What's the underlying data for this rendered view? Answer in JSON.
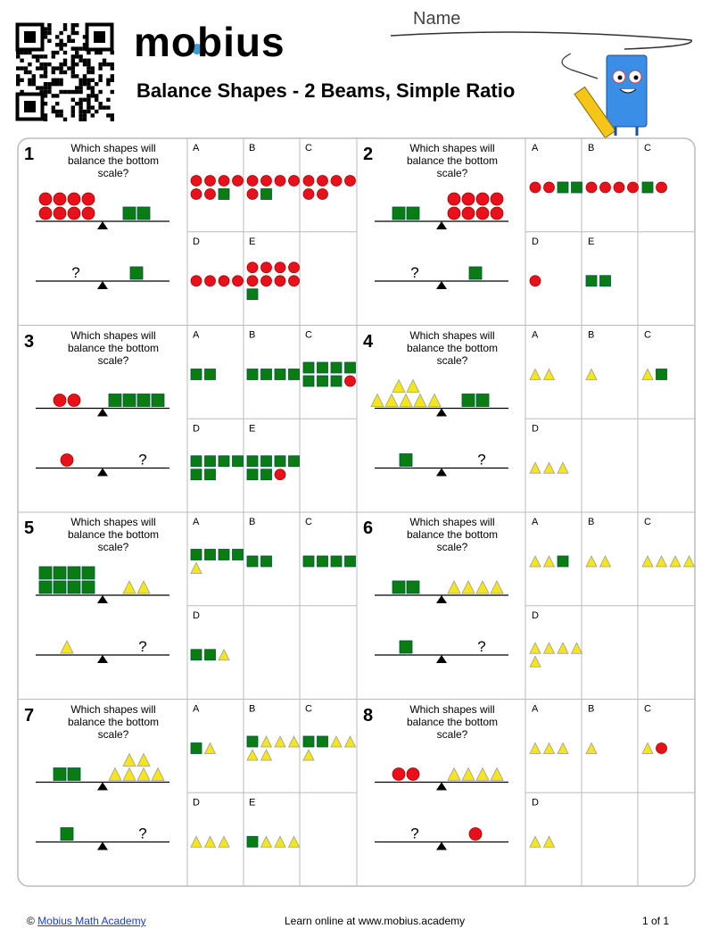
{
  "header": {
    "name_label": "Name",
    "logo": "mobius",
    "title": "Balance Shapes - 2 Beams, Simple Ratio"
  },
  "problems": [
    {
      "number": "1",
      "question": "Which shapes will balance the bottom scale?",
      "unknown": "?",
      "options": [
        "A",
        "B",
        "C",
        "D",
        "E"
      ]
    },
    {
      "number": "2",
      "question": "Which shapes will balance the bottom scale?",
      "unknown": "?",
      "options": [
        "A",
        "B",
        "C",
        "D",
        "E"
      ]
    },
    {
      "number": "3",
      "question": "Which shapes will balance the bottom scale?",
      "unknown": "?",
      "options": [
        "A",
        "B",
        "C",
        "D",
        "E"
      ]
    },
    {
      "number": "4",
      "question": "Which shapes will balance the bottom scale?",
      "unknown": "?",
      "options": [
        "A",
        "B",
        "C",
        "D"
      ]
    },
    {
      "number": "5",
      "question": "Which shapes will balance the bottom scale?",
      "unknown": "?",
      "options": [
        "A",
        "B",
        "C",
        "D"
      ]
    },
    {
      "number": "6",
      "question": "Which shapes will balance the bottom scale?",
      "unknown": "?",
      "options": [
        "A",
        "B",
        "C",
        "D"
      ]
    },
    {
      "number": "7",
      "question": "Which shapes will balance the bottom scale?",
      "unknown": "?",
      "options": [
        "A",
        "B",
        "C",
        "D",
        "E"
      ]
    },
    {
      "number": "8",
      "question": "Which shapes will balance the bottom scale?",
      "unknown": "?",
      "options": [
        "A",
        "B",
        "C",
        "D"
      ]
    }
  ],
  "footer": {
    "copyright": "©",
    "link": "Mobius Math Academy",
    "learn": "Learn online at www.mobius.academy",
    "page": "1 of 1"
  }
}
